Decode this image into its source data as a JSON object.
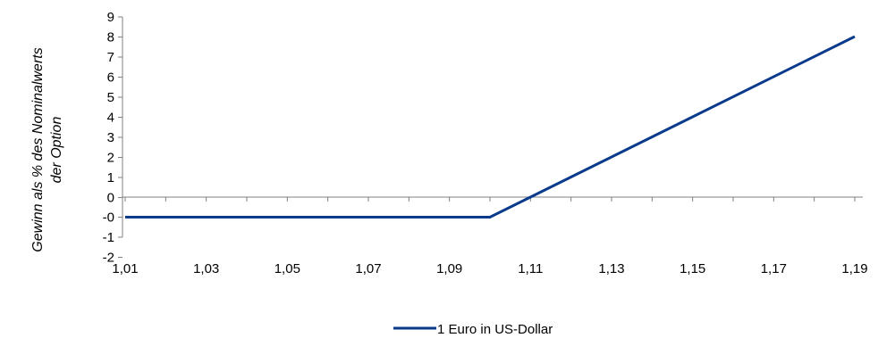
{
  "chart_data": {
    "type": "line",
    "xlabel": "",
    "ylabel_lines": [
      "Gewinn als % des Nominalwerts",
      "der Option"
    ],
    "x_tick_labels": [
      "1,01",
      "1,03",
      "1,05",
      "1,07",
      "1,09",
      "1,11",
      "1,13",
      "1,15",
      "1,17",
      "1,19"
    ],
    "y_tick_labels": [
      "9",
      "8",
      "7",
      "6",
      "5",
      "4",
      "3",
      "2",
      "1",
      "0",
      "-0",
      "-1",
      "-2"
    ],
    "xlim": [
      1.01,
      1.19
    ],
    "ylim": [
      -2,
      9
    ],
    "grid": false,
    "legend_position": "bottom-center",
    "series": [
      {
        "name": "1 Euro in US-Dollar",
        "color": "#0a3a8c",
        "points": [
          [
            1.01,
            -1
          ],
          [
            1.1,
            -1
          ],
          [
            1.19,
            8
          ]
        ]
      }
    ]
  }
}
